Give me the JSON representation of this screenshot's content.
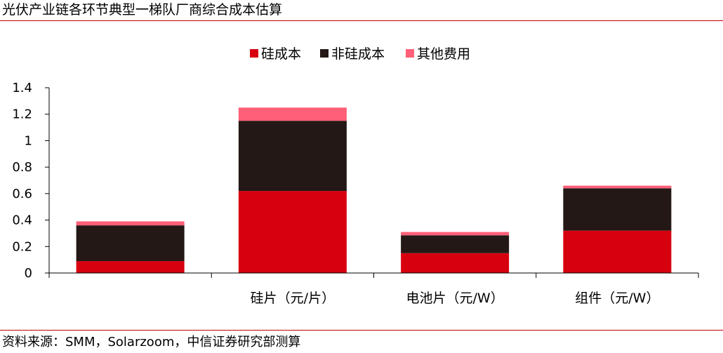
{
  "header": {
    "title": "光伏产业链各环节典型一梯队厂商综合成本估算"
  },
  "footer": {
    "source": "资料来源：SMM，Solarzoom，中信证券研究部测算"
  },
  "chart_data": {
    "type": "bar",
    "stacked": true,
    "title": "光伏产业链各环节典型一梯队厂商综合成本估算",
    "categories": [
      "",
      "硅片（元/片）",
      "电池片（元/W）",
      "组件（元/W）"
    ],
    "series": [
      {
        "name": "硅成本",
        "color": "#d7000f",
        "values": [
          0.09,
          0.62,
          0.15,
          0.32
        ]
      },
      {
        "name": "非硅成本",
        "color": "#231815",
        "values": [
          0.27,
          0.53,
          0.135,
          0.32
        ]
      },
      {
        "name": "其他费用",
        "color": "#ff5f78",
        "values": [
          0.03,
          0.1,
          0.025,
          0.02
        ]
      }
    ],
    "yticks": [
      "0",
      "0.2",
      "0.4",
      "0.6",
      "0.8",
      "1",
      "1.2",
      "1.4"
    ],
    "ylim": [
      0,
      1.4
    ],
    "legend_position": "top-center",
    "grid": false
  }
}
